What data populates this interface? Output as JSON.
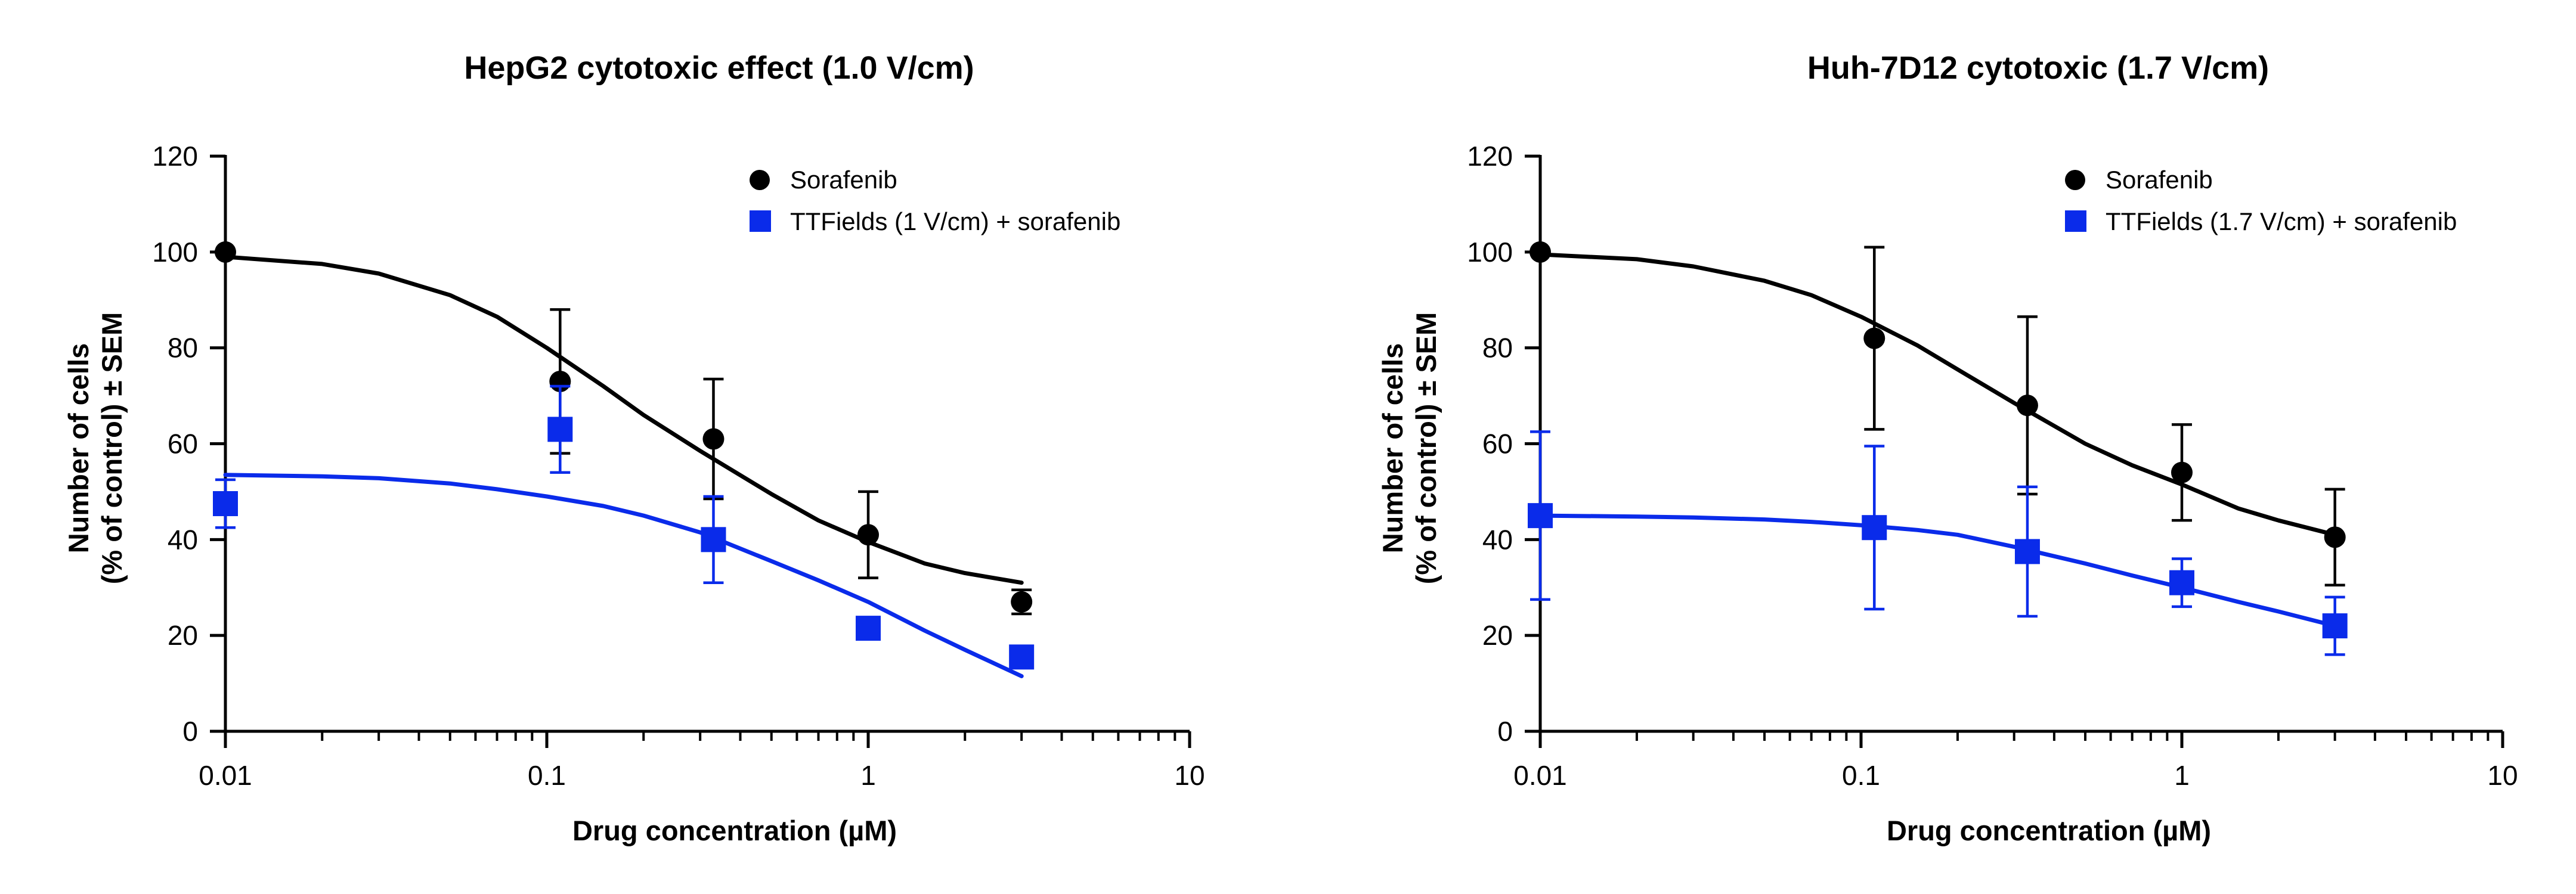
{
  "chart_data": [
    {
      "type": "scatter",
      "title": "HepG2 cytotoxic effect (1.0 V/cm)",
      "xlabel": "Drug concentration (µM)",
      "ylabel_lines": [
        "Number of cells",
        "(% of control) ± SEM"
      ],
      "x_scale": "log",
      "xlim": [
        0.01,
        10
      ],
      "ylim": [
        0,
        120
      ],
      "x_ticks": [
        0.01,
        0.1,
        1,
        10
      ],
      "x_tick_labels": [
        "0.01",
        "0.1",
        "1",
        "10"
      ],
      "y_ticks": [
        0,
        20,
        40,
        60,
        80,
        100,
        120
      ],
      "y_tick_labels": [
        "0",
        "20",
        "40",
        "60",
        "80",
        "100",
        "120"
      ],
      "legend_position": "top-right",
      "series": [
        {
          "name": "Sorafenib",
          "color": "#000000",
          "marker": "circle",
          "points": [
            {
              "x": 0.01,
              "y": 100,
              "err": 0
            },
            {
              "x": 0.11,
              "y": 73,
              "err": 15
            },
            {
              "x": 0.33,
              "y": 61,
              "err": 12.5
            },
            {
              "x": 1,
              "y": 41,
              "err": 9
            },
            {
              "x": 3,
              "y": 27,
              "err": 2.5
            }
          ],
          "fit": [
            {
              "x": 0.01,
              "y": 99
            },
            {
              "x": 0.02,
              "y": 97.5
            },
            {
              "x": 0.03,
              "y": 95.5
            },
            {
              "x": 0.05,
              "y": 91
            },
            {
              "x": 0.07,
              "y": 86.5
            },
            {
              "x": 0.1,
              "y": 80
            },
            {
              "x": 0.15,
              "y": 72
            },
            {
              "x": 0.2,
              "y": 66
            },
            {
              "x": 0.3,
              "y": 58.5
            },
            {
              "x": 0.5,
              "y": 49.5
            },
            {
              "x": 0.7,
              "y": 44
            },
            {
              "x": 1,
              "y": 39.5
            },
            {
              "x": 1.5,
              "y": 35
            },
            {
              "x": 2,
              "y": 33
            },
            {
              "x": 3,
              "y": 31
            }
          ]
        },
        {
          "name": "TTFields (1 V/cm) + sorafenib",
          "color": "#0a2bea",
          "marker": "square",
          "points": [
            {
              "x": 0.01,
              "y": 47.5,
              "err": 5
            },
            {
              "x": 0.11,
              "y": 63,
              "err": 9
            },
            {
              "x": 0.33,
              "y": 40,
              "err": 9
            },
            {
              "x": 1,
              "y": 21.5,
              "err": 2
            },
            {
              "x": 3,
              "y": 15.5,
              "err": 1
            }
          ],
          "fit": [
            {
              "x": 0.01,
              "y": 53.5
            },
            {
              "x": 0.02,
              "y": 53.2
            },
            {
              "x": 0.03,
              "y": 52.8
            },
            {
              "x": 0.05,
              "y": 51.7
            },
            {
              "x": 0.07,
              "y": 50.5
            },
            {
              "x": 0.1,
              "y": 49
            },
            {
              "x": 0.15,
              "y": 47
            },
            {
              "x": 0.2,
              "y": 45
            },
            {
              "x": 0.3,
              "y": 41.5
            },
            {
              "x": 0.5,
              "y": 35.5
            },
            {
              "x": 0.7,
              "y": 31.5
            },
            {
              "x": 1,
              "y": 27
            },
            {
              "x": 1.5,
              "y": 21
            },
            {
              "x": 2,
              "y": 17
            },
            {
              "x": 3,
              "y": 11.5
            }
          ]
        }
      ]
    },
    {
      "type": "scatter",
      "title": "Huh-7D12 cytotoxic (1.7 V/cm)",
      "xlabel": "Drug concentration (µM)",
      "ylabel_lines": [
        "Number of cells",
        "(% of control) ± SEM"
      ],
      "x_scale": "log",
      "xlim": [
        0.01,
        10
      ],
      "ylim": [
        0,
        120
      ],
      "x_ticks": [
        0.01,
        0.1,
        1,
        10
      ],
      "x_tick_labels": [
        "0.01",
        "0.1",
        "1",
        "10"
      ],
      "y_ticks": [
        0,
        20,
        40,
        60,
        80,
        100,
        120
      ],
      "y_tick_labels": [
        "0",
        "20",
        "40",
        "60",
        "80",
        "100",
        "120"
      ],
      "legend_position": "top-right",
      "series": [
        {
          "name": "Sorafenib",
          "color": "#000000",
          "marker": "circle",
          "points": [
            {
              "x": 0.01,
              "y": 100,
              "err": 0
            },
            {
              "x": 0.11,
              "y": 82,
              "err": 19
            },
            {
              "x": 0.33,
              "y": 68,
              "err": 18.5
            },
            {
              "x": 1,
              "y": 54,
              "err": 10
            },
            {
              "x": 3,
              "y": 40.5,
              "err": 10
            }
          ],
          "fit": [
            {
              "x": 0.01,
              "y": 99.5
            },
            {
              "x": 0.02,
              "y": 98.5
            },
            {
              "x": 0.03,
              "y": 97
            },
            {
              "x": 0.05,
              "y": 94
            },
            {
              "x": 0.07,
              "y": 91
            },
            {
              "x": 0.1,
              "y": 86.5
            },
            {
              "x": 0.15,
              "y": 80.5
            },
            {
              "x": 0.2,
              "y": 75.5
            },
            {
              "x": 0.3,
              "y": 68.5
            },
            {
              "x": 0.5,
              "y": 60
            },
            {
              "x": 0.7,
              "y": 55.5
            },
            {
              "x": 1,
              "y": 51.5
            },
            {
              "x": 1.5,
              "y": 46.5
            },
            {
              "x": 2,
              "y": 44
            },
            {
              "x": 3,
              "y": 41
            }
          ]
        },
        {
          "name": "TTFields (1.7 V/cm) + sorafenib",
          "color": "#0a2bea",
          "marker": "square",
          "points": [
            {
              "x": 0.01,
              "y": 45,
              "err": 17.5
            },
            {
              "x": 0.11,
              "y": 42.5,
              "err": 17
            },
            {
              "x": 0.33,
              "y": 37.5,
              "err": 13.5
            },
            {
              "x": 1,
              "y": 31,
              "err": 5
            },
            {
              "x": 3,
              "y": 22,
              "err": 6
            }
          ],
          "fit": [
            {
              "x": 0.01,
              "y": 45
            },
            {
              "x": 0.02,
              "y": 44.8
            },
            {
              "x": 0.03,
              "y": 44.6
            },
            {
              "x": 0.05,
              "y": 44.2
            },
            {
              "x": 0.07,
              "y": 43.7
            },
            {
              "x": 0.1,
              "y": 43
            },
            {
              "x": 0.15,
              "y": 42
            },
            {
              "x": 0.2,
              "y": 41
            },
            {
              "x": 0.3,
              "y": 38.5
            },
            {
              "x": 0.5,
              "y": 35
            },
            {
              "x": 0.7,
              "y": 32.5
            },
            {
              "x": 1,
              "y": 30
            },
            {
              "x": 1.5,
              "y": 27
            },
            {
              "x": 2,
              "y": 25
            },
            {
              "x": 3,
              "y": 22
            }
          ]
        }
      ]
    }
  ]
}
